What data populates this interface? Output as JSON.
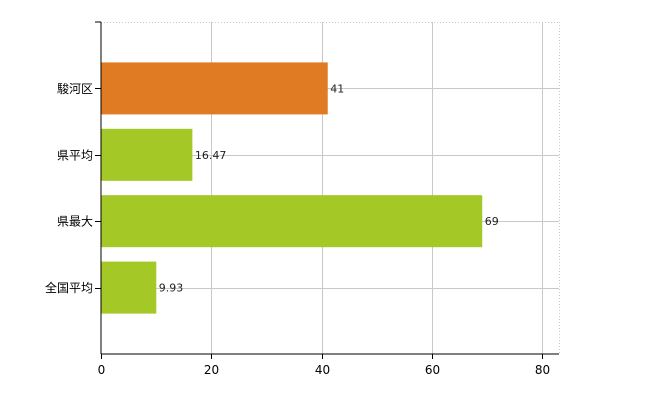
{
  "chart_data": {
    "type": "bar",
    "orientation": "horizontal",
    "categories": [
      "駿河区",
      "県平均",
      "県最大",
      "全国平均"
    ],
    "values": [
      41,
      16.47,
      69,
      9.93
    ],
    "value_labels": [
      "41",
      "16.47",
      "69",
      "9.93"
    ],
    "bar_colors": [
      "#e07b24",
      "#a4c825",
      "#a4c825",
      "#a4c825"
    ],
    "xlim": [
      0,
      83
    ],
    "xticks": [
      0,
      20,
      40,
      60,
      80
    ],
    "xtick_labels": [
      "0",
      "20",
      "40",
      "60",
      "80"
    ],
    "grid": true
  }
}
